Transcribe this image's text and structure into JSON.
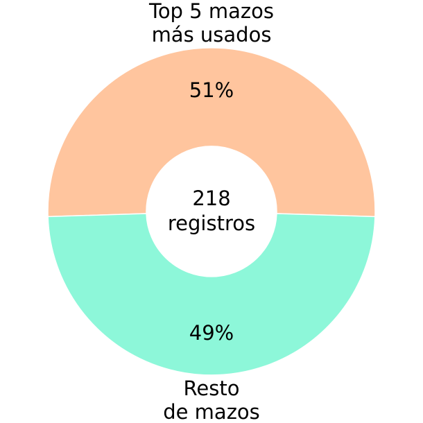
{
  "chart_data": {
    "type": "pie",
    "variant": "donut",
    "categories": [
      "Top 5 mazos\nmás usados",
      "Resto\nde mazos"
    ],
    "values": [
      51,
      49
    ],
    "percent_labels": [
      "51%",
      "49%"
    ],
    "colors": [
      "#FFC59E",
      "#8DF7D9"
    ],
    "center_label": {
      "line1": "218",
      "line2": "registros"
    }
  }
}
